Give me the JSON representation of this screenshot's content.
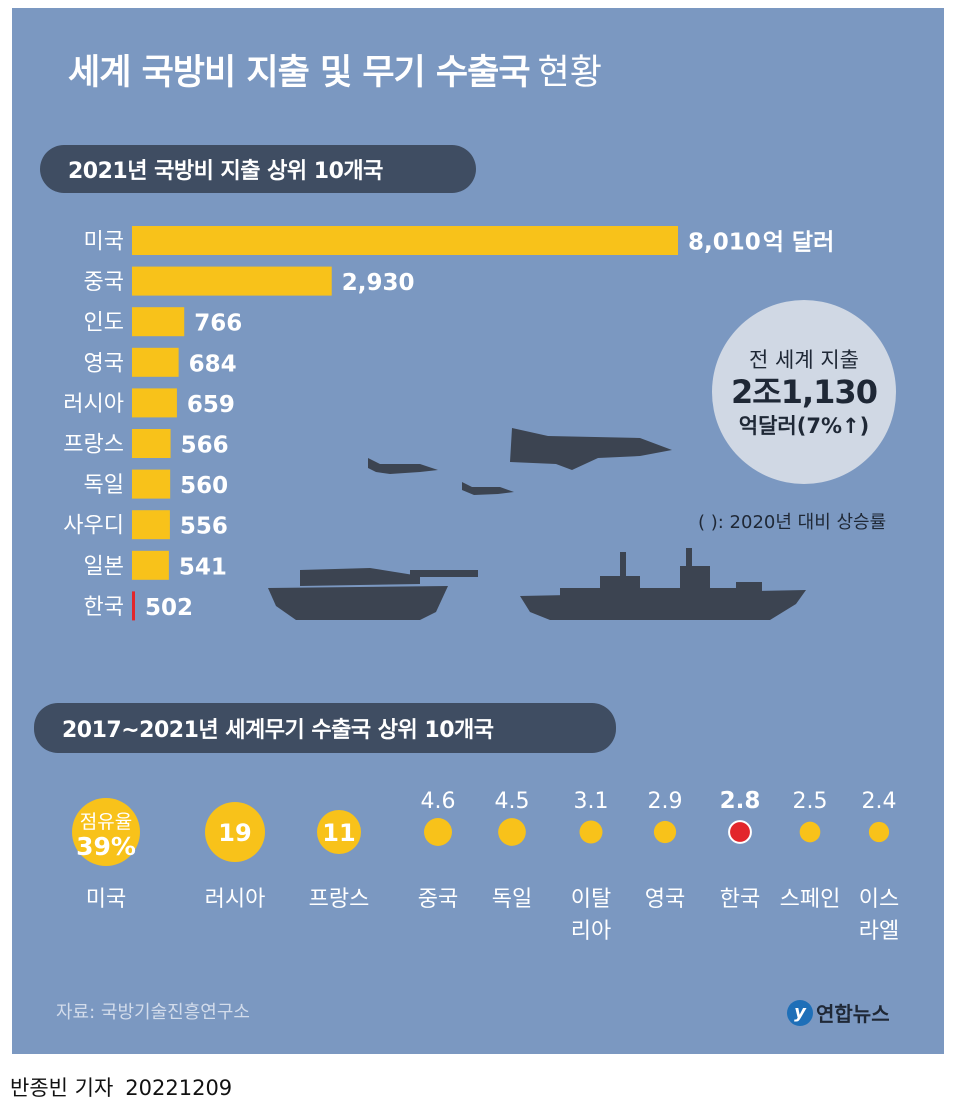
{
  "title": {
    "main": "세계 국방비 지출 및 무기 수출국",
    "sub": "현황"
  },
  "section1": {
    "title": "2021년 국방비 지출 상위 10개국",
    "value_labels": [
      "8,010",
      "2,930",
      "766",
      "684",
      "659",
      "566",
      "560",
      "556",
      "541",
      "502"
    ],
    "unit": "억 달러"
  },
  "bubble": {
    "line1": "전 세계 지출",
    "line2": "2조1,130",
    "line3": "억달러(7%↑)"
  },
  "footnote": "( ): 2020년 대비 상승률",
  "section2": {
    "title": "2017~2021년 세계무기 수출국 상위 10개국",
    "share_label": "점유율",
    "top_value_label": "39%",
    "value_labels": [
      "39",
      "19",
      "11",
      "4.6",
      "4.5",
      "3.1",
      "2.9",
      "2.8",
      "2.5",
      "2.4"
    ],
    "country_labels": [
      [
        "미국"
      ],
      [
        "러시아"
      ],
      [
        "프랑스"
      ],
      [
        "중국"
      ],
      [
        "독일"
      ],
      [
        "이탈",
        "리아"
      ],
      [
        "영국"
      ],
      [
        "한국"
      ],
      [
        "스페인"
      ],
      [
        "이스",
        "라엘"
      ]
    ]
  },
  "source": "자료: 국방기술진흥연구소",
  "logo": {
    "mark": "y",
    "text": "연합뉴스"
  },
  "byline": {
    "reporter": "반종빈 기자",
    "date": "20221209"
  },
  "colors": {
    "background": "#7b98c1",
    "bar": "#f8c21a",
    "highlight": "#e2262b",
    "pill": "#3f4d62",
    "silhouette": "#3c4451"
  },
  "icons": [
    "fighter-jet-icon",
    "tank-icon",
    "warship-icon"
  ],
  "chart_data": [
    {
      "type": "bar",
      "title": "2021년 국방비 지출 상위 10개국",
      "orientation": "horizontal",
      "categories": [
        "미국",
        "중국",
        "인도",
        "영국",
        "러시아",
        "프랑스",
        "독일",
        "사우디",
        "일본",
        "한국"
      ],
      "values": [
        8010,
        2930,
        766,
        684,
        659,
        566,
        560,
        556,
        541,
        502
      ],
      "unit": "억 달러",
      "highlight": "한국"
    },
    {
      "type": "scatter",
      "title": "2017~2021년 세계무기 수출국 상위 10개국",
      "categories": [
        "미국",
        "러시아",
        "프랑스",
        "중국",
        "독일",
        "이탈리아",
        "영국",
        "한국",
        "스페인",
        "이스라엘"
      ],
      "values": [
        39,
        19,
        11,
        4.6,
        4.5,
        3.1,
        2.9,
        2.8,
        2.5,
        2.4
      ],
      "unit": "%",
      "highlight": "한국"
    }
  ]
}
